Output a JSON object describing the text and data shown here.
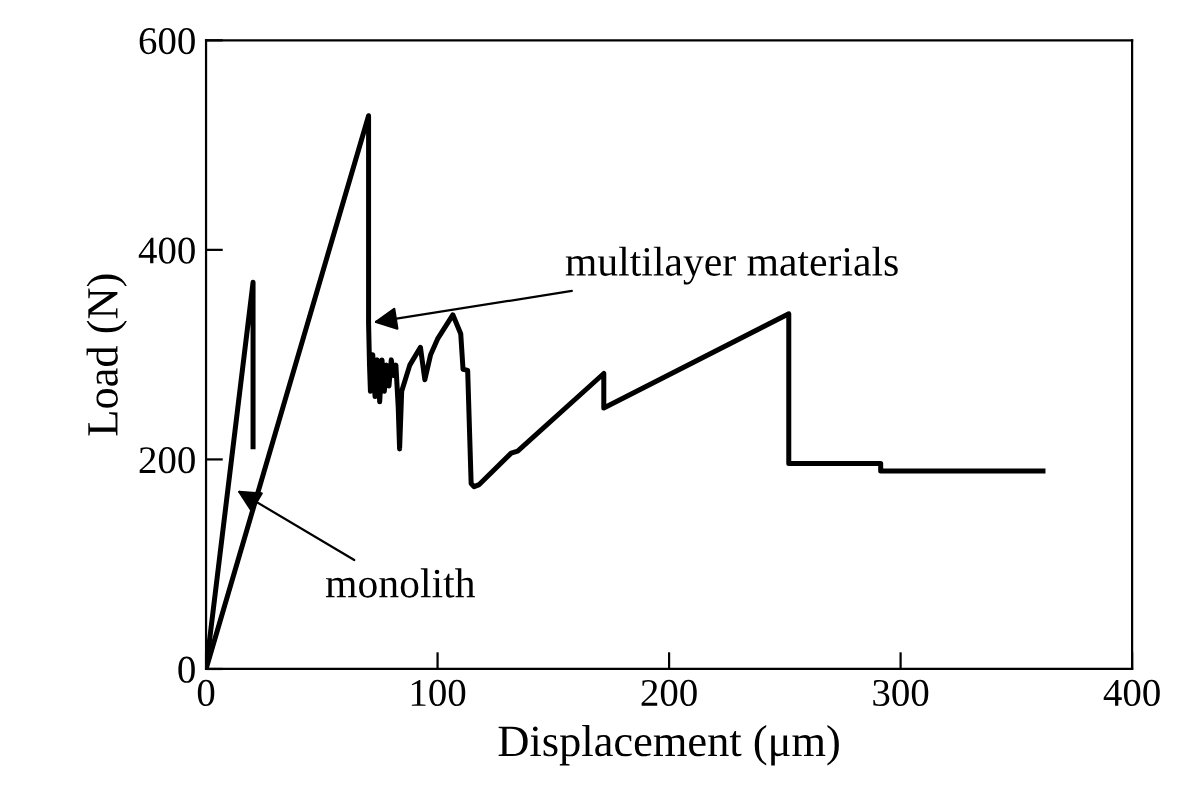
{
  "chart_data": {
    "type": "line",
    "xlabel": "Displacement (μm)",
    "ylabel": "Load (N)",
    "xlim": [
      0,
      400
    ],
    "ylim": [
      0,
      600
    ],
    "xticks": [
      0,
      100,
      200,
      300,
      400
    ],
    "yticks": [
      0,
      200,
      400,
      600
    ],
    "grid": false,
    "marker": "none",
    "line_style": "solid",
    "series": [
      {
        "color": "#000000",
        "x": [
          0,
          20.3,
          20.3
        ],
        "values": [
          0,
          369,
          212
        ]
      },
      {
        "color": "#000000",
        "x": [
          0,
          70.2,
          70.2,
          70.6,
          71,
          72,
          73,
          74,
          75,
          76,
          77,
          78,
          79,
          80,
          81,
          82,
          83,
          83.6,
          84.5,
          88,
          92.6,
          94.5,
          97,
          100,
          106.6,
          110,
          111,
          113,
          114.5,
          115.8,
          118,
          131.8,
          134.6,
          171.8,
          171.8,
          251.7,
          251.7,
          291.4,
          291.4,
          361.5
        ],
        "values": [
          0,
          528,
          330,
          290,
          265,
          300,
          260,
          295,
          255,
          295,
          265,
          290,
          270,
          295,
          280,
          290,
          250,
          210,
          265,
          290,
          307,
          276,
          300,
          315,
          338,
          320,
          286,
          285,
          177,
          174,
          176,
          206,
          208,
          282,
          249,
          339,
          196,
          196,
          189,
          189
        ]
      }
    ],
    "annotations": [
      {
        "text": "multilayer materials",
        "x": 70,
        "y": 330
      },
      {
        "text": "monolith",
        "x": 11.4,
        "y": 173
      }
    ]
  }
}
